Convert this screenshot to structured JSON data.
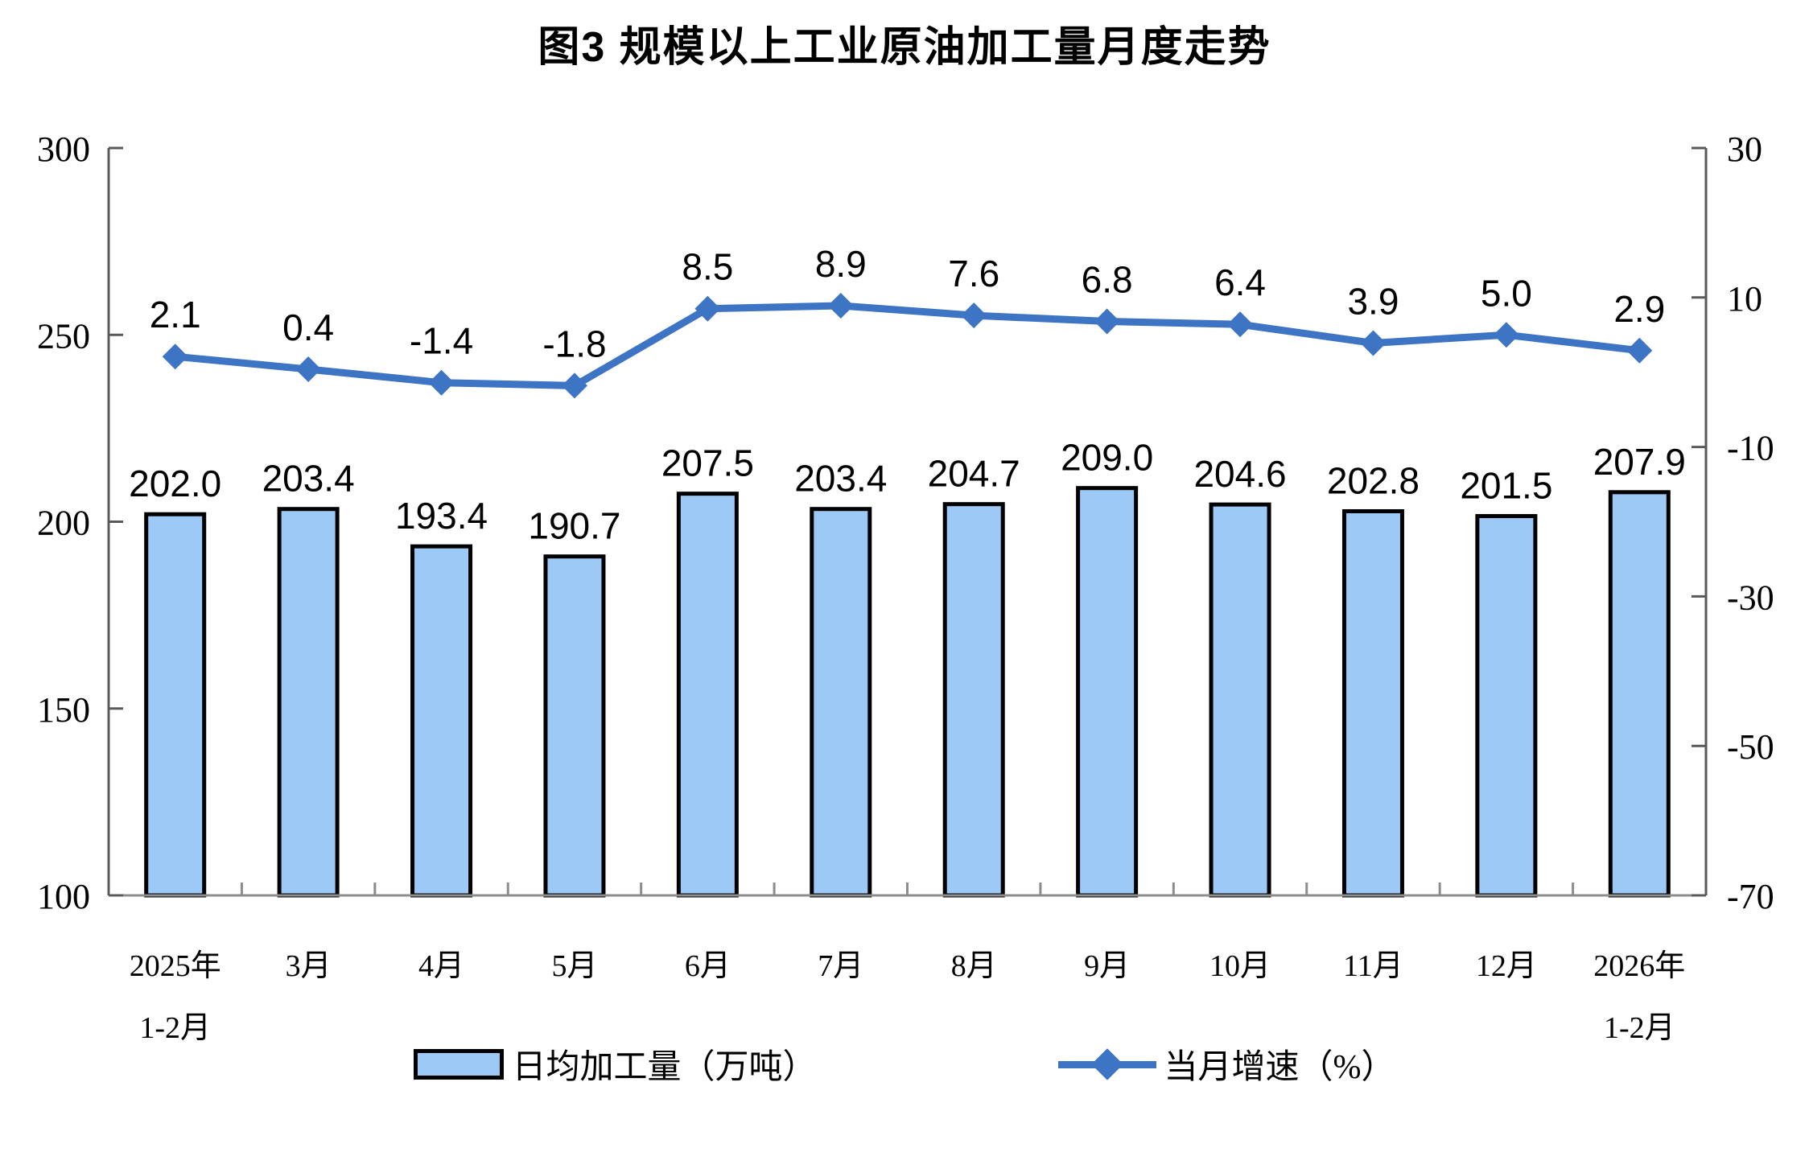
{
  "title": "图3  规模以上工业原油加工量月度走势",
  "legend": {
    "bar_label": "日均加工量（万吨）",
    "line_label": "当月增速（%）"
  },
  "colors": {
    "bar_fill": "#9DC9F7",
    "bar_border": "#000000",
    "line": "#3E74C4",
    "axis": "#595959",
    "x_axis": "#8C8C8C",
    "text": "#000000"
  },
  "chart_data": {
    "type": "bar+line",
    "title": "图3  规模以上工业原油加工量月度走势",
    "xlabel": "",
    "ylabel_left": "日均加工量（万吨）",
    "ylabel_right": "当月增速（%）",
    "grid": false,
    "legend_position": "bottom",
    "categories": [
      [
        "2025年",
        "1-2月"
      ],
      [
        "3月"
      ],
      [
        "4月"
      ],
      [
        "5月"
      ],
      [
        "6月"
      ],
      [
        "7月"
      ],
      [
        "8月"
      ],
      [
        "9月"
      ],
      [
        "10月"
      ],
      [
        "11月"
      ],
      [
        "12月"
      ],
      [
        "2026年",
        "1-2月"
      ]
    ],
    "series": [
      {
        "name": "日均加工量（万吨）",
        "type": "bar",
        "axis": "left",
        "values": [
          202.0,
          203.4,
          193.4,
          190.7,
          207.5,
          203.4,
          204.7,
          209.0,
          204.6,
          202.8,
          201.5,
          207.9
        ],
        "labels": [
          "202.0",
          "203.4",
          "193.4",
          "190.7",
          "207.5",
          "203.4",
          "204.7",
          "209.0",
          "204.6",
          "202.8",
          "201.5",
          "207.9"
        ]
      },
      {
        "name": "当月增速（%）",
        "type": "line",
        "axis": "right",
        "values": [
          2.1,
          0.4,
          -1.4,
          -1.8,
          8.5,
          8.9,
          7.6,
          6.8,
          6.4,
          3.9,
          5.0,
          2.9
        ],
        "labels": [
          "2.1",
          "0.4",
          "-1.4",
          "-1.8",
          "8.5",
          "8.9",
          "7.6",
          "6.8",
          "6.4",
          "3.9",
          "5.0",
          "2.9"
        ]
      }
    ],
    "left_axis": {
      "min": 100,
      "max": 300,
      "ticks": [
        300,
        250,
        200,
        150,
        100
      ]
    },
    "right_axis": {
      "min": -70,
      "max": 30,
      "ticks": [
        30,
        10,
        -10,
        -30,
        -50,
        -70
      ]
    }
  }
}
